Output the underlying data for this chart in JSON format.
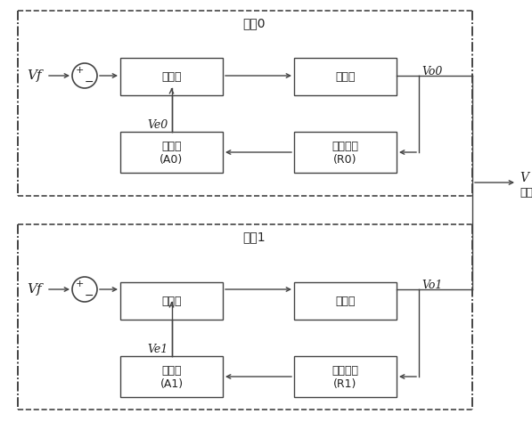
{
  "bg_color": "#ffffff",
  "line_color": "#444444",
  "box_edge_color": "#444444",
  "dash_color": "#444444",
  "text_color": "#222222",
  "master_label": "主机0",
  "slave_label": "从机1",
  "controller0_text": [
    "控制器"
  ],
  "inverter0_text": [
    "逆变器"
  ],
  "corrector0_text": [
    "校正器",
    "(A0)"
  ],
  "sample0_text": [
    "采样电路",
    "(R0)"
  ],
  "controller1_text": [
    "控制器"
  ],
  "inverter1_text": [
    "逆变器"
  ],
  "corrector1_text": [
    "校正器",
    "(A1)"
  ],
  "sample1_text": [
    "采样电路",
    "(R1)"
  ],
  "vf0_label": "Vf",
  "ve0_label": "Ve0",
  "vo0_label": "Vo0",
  "vf1_label": "Vf",
  "ve1_label": "Ve1",
  "vo1_label": "Vo1",
  "v_label": "V",
  "output_label": "输出"
}
